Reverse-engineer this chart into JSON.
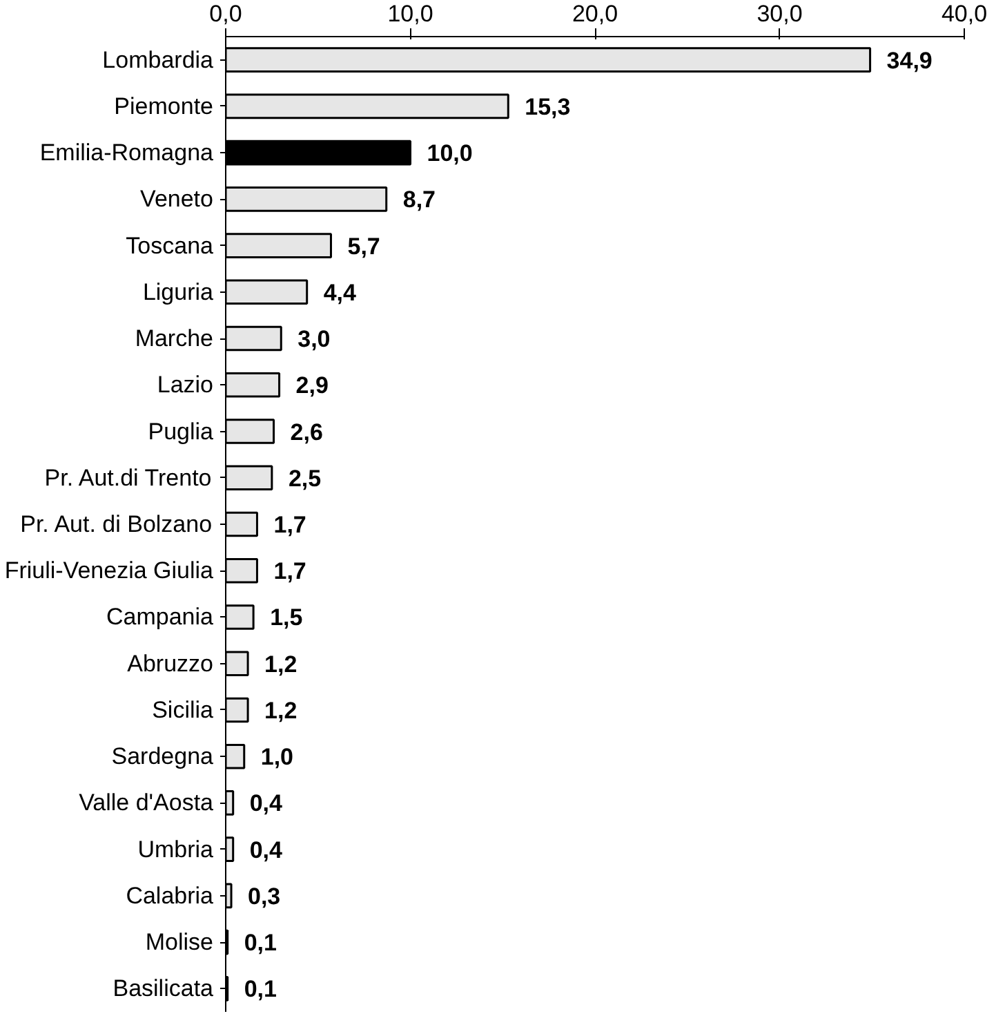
{
  "chart_data": {
    "type": "bar",
    "orientation": "horizontal",
    "categories": [
      "Lombardia",
      "Piemonte",
      "Emilia-Romagna",
      "Veneto",
      "Toscana",
      "Liguria",
      "Marche",
      "Lazio",
      "Puglia",
      "Pr. Aut.di Trento",
      "Pr. Aut. di Bolzano",
      "Friuli-Venezia Giulia",
      "Campania",
      "Abruzzo",
      "Sicilia",
      "Sardegna",
      "Valle d'Aosta",
      "Umbria",
      "Calabria",
      "Molise",
      "Basilicata"
    ],
    "values": [
      34.9,
      15.3,
      10.0,
      8.7,
      5.7,
      4.4,
      3.0,
      2.9,
      2.6,
      2.5,
      1.7,
      1.7,
      1.5,
      1.2,
      1.2,
      1.0,
      0.4,
      0.4,
      0.3,
      0.1,
      0.1
    ],
    "colors": [
      "#e6e6e6",
      "#e6e6e6",
      "#000000",
      "#e6e6e6",
      "#e6e6e6",
      "#e6e6e6",
      "#e6e6e6",
      "#e6e6e6",
      "#e6e6e6",
      "#e6e6e6",
      "#e6e6e6",
      "#e6e6e6",
      "#e6e6e6",
      "#e6e6e6",
      "#e6e6e6",
      "#e6e6e6",
      "#e6e6e6",
      "#e6e6e6",
      "#e6e6e6",
      "#e6e6e6",
      "#e6e6e6"
    ],
    "value_labels": [
      "34,9",
      "15,3",
      "10,0",
      "8,7",
      "5,7",
      "4,4",
      "3,0",
      "2,9",
      "2,6",
      "2,5",
      "1,7",
      "1,7",
      "1,5",
      "1,2",
      "1,2",
      "1,0",
      "0,4",
      "0,4",
      "0,3",
      "0,1",
      "0,1"
    ],
    "xlim": [
      0,
      40
    ],
    "xticks": [
      {
        "value": 0,
        "label": "0,0"
      },
      {
        "value": 10,
        "label": "10,0"
      },
      {
        "value": 20,
        "label": "20,0"
      },
      {
        "value": 30,
        "label": "30,0"
      },
      {
        "value": 40,
        "label": "40,0"
      }
    ],
    "grid": false
  }
}
